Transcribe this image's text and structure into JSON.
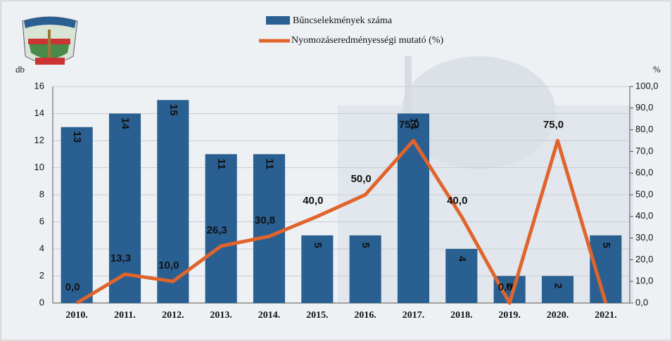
{
  "chart_data": {
    "type": "bar-line",
    "y_label": "db",
    "y2_label": "%",
    "categories": [
      "2010.",
      "2011.",
      "2012.",
      "2013.",
      "2014.",
      "2015.",
      "2016.",
      "2017.",
      "2018.",
      "2019.",
      "2020.",
      "2021."
    ],
    "series": [
      {
        "name": "Bűncselekmények száma",
        "type": "bar",
        "color": "#2a5f91",
        "values": [
          13,
          14,
          15,
          11,
          11,
          5,
          5,
          14,
          4,
          2,
          2,
          5
        ]
      },
      {
        "name": "Nyomozáseredményességi mutató (%)",
        "type": "line",
        "axis": "y2",
        "color": "#e0642c",
        "values": [
          0,
          13.3,
          10,
          26.3,
          30.8,
          40,
          50,
          75,
          40,
          0,
          75,
          0
        ],
        "value_labels": [
          "0,0",
          "13,3",
          "10,0",
          "26,3",
          "30,8",
          "40,0",
          "50,0",
          "75,0",
          "40,0",
          "0,0",
          "75,0",
          null
        ]
      }
    ],
    "ylim": [
      0,
      16
    ],
    "yticks": [
      0,
      2,
      4,
      6,
      8,
      10,
      12,
      14,
      16
    ],
    "y2lim": [
      0,
      100
    ],
    "y2ticks": [
      {
        "value": 0,
        "label": "0,0"
      },
      {
        "value": 10,
        "label": "10,0"
      },
      {
        "value": 20,
        "label": "20,0"
      },
      {
        "value": 30,
        "label": "30,0"
      },
      {
        "value": 40,
        "label": "40,0"
      },
      {
        "value": 50,
        "label": "50,0"
      },
      {
        "value": 60,
        "label": "60,0"
      },
      {
        "value": 70,
        "label": "70,0"
      },
      {
        "value": 80,
        "label": "80,0"
      },
      {
        "value": 90,
        "label": "90,0"
      },
      {
        "value": 100,
        "label": "100,0"
      }
    ],
    "grid": true
  }
}
